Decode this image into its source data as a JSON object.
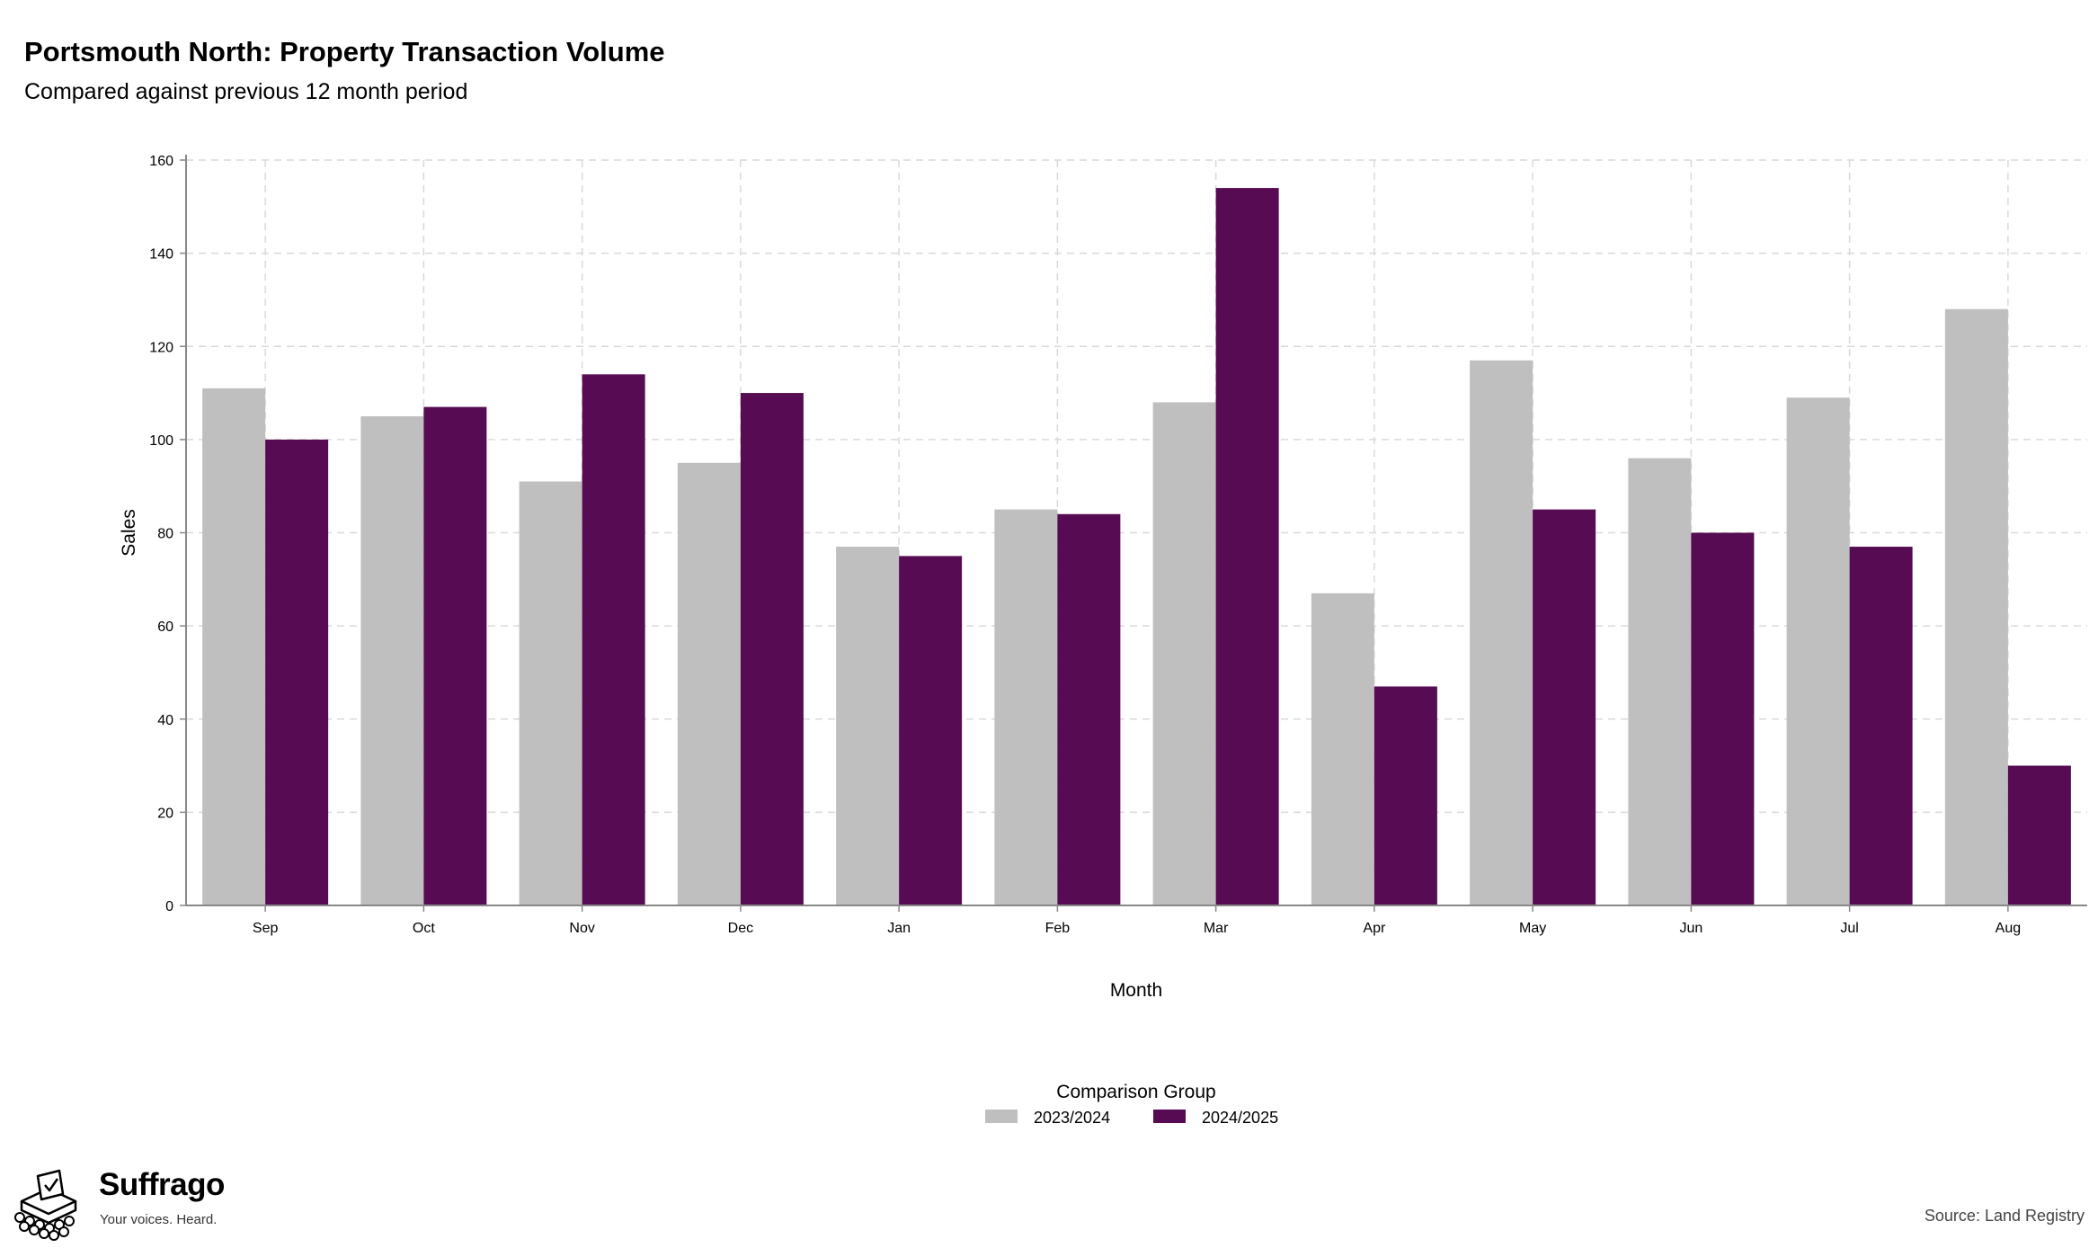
{
  "header": {
    "title": "Portsmouth North: Property Transaction Volume",
    "subtitle": "Compared against previous 12 month period"
  },
  "chart_data": {
    "type": "bar",
    "categories": [
      "Sep",
      "Oct",
      "Nov",
      "Dec",
      "Jan",
      "Feb",
      "Mar",
      "Apr",
      "May",
      "Jun",
      "Jul",
      "Aug"
    ],
    "series": [
      {
        "name": "2023/2024",
        "color": "#bfbfbf",
        "values": [
          111,
          105,
          91,
          95,
          77,
          85,
          108,
          67,
          117,
          96,
          109,
          128
        ]
      },
      {
        "name": "2024/2025",
        "color": "#560b52",
        "values": [
          100,
          107,
          114,
          110,
          75,
          84,
          154,
          47,
          85,
          80,
          77,
          30
        ]
      }
    ],
    "xlabel": "Month",
    "ylabel": "Sales",
    "ylim": [
      0,
      160
    ],
    "yticks": [
      0,
      20,
      40,
      60,
      80,
      100,
      120,
      140,
      160
    ],
    "grid": true,
    "legend": {
      "title": "Comparison Group",
      "position": "bottom"
    }
  },
  "footer": {
    "brand_name": "Suffrago",
    "brand_tagline": "Your voices. Heard.",
    "source": "Source: Land Registry"
  }
}
